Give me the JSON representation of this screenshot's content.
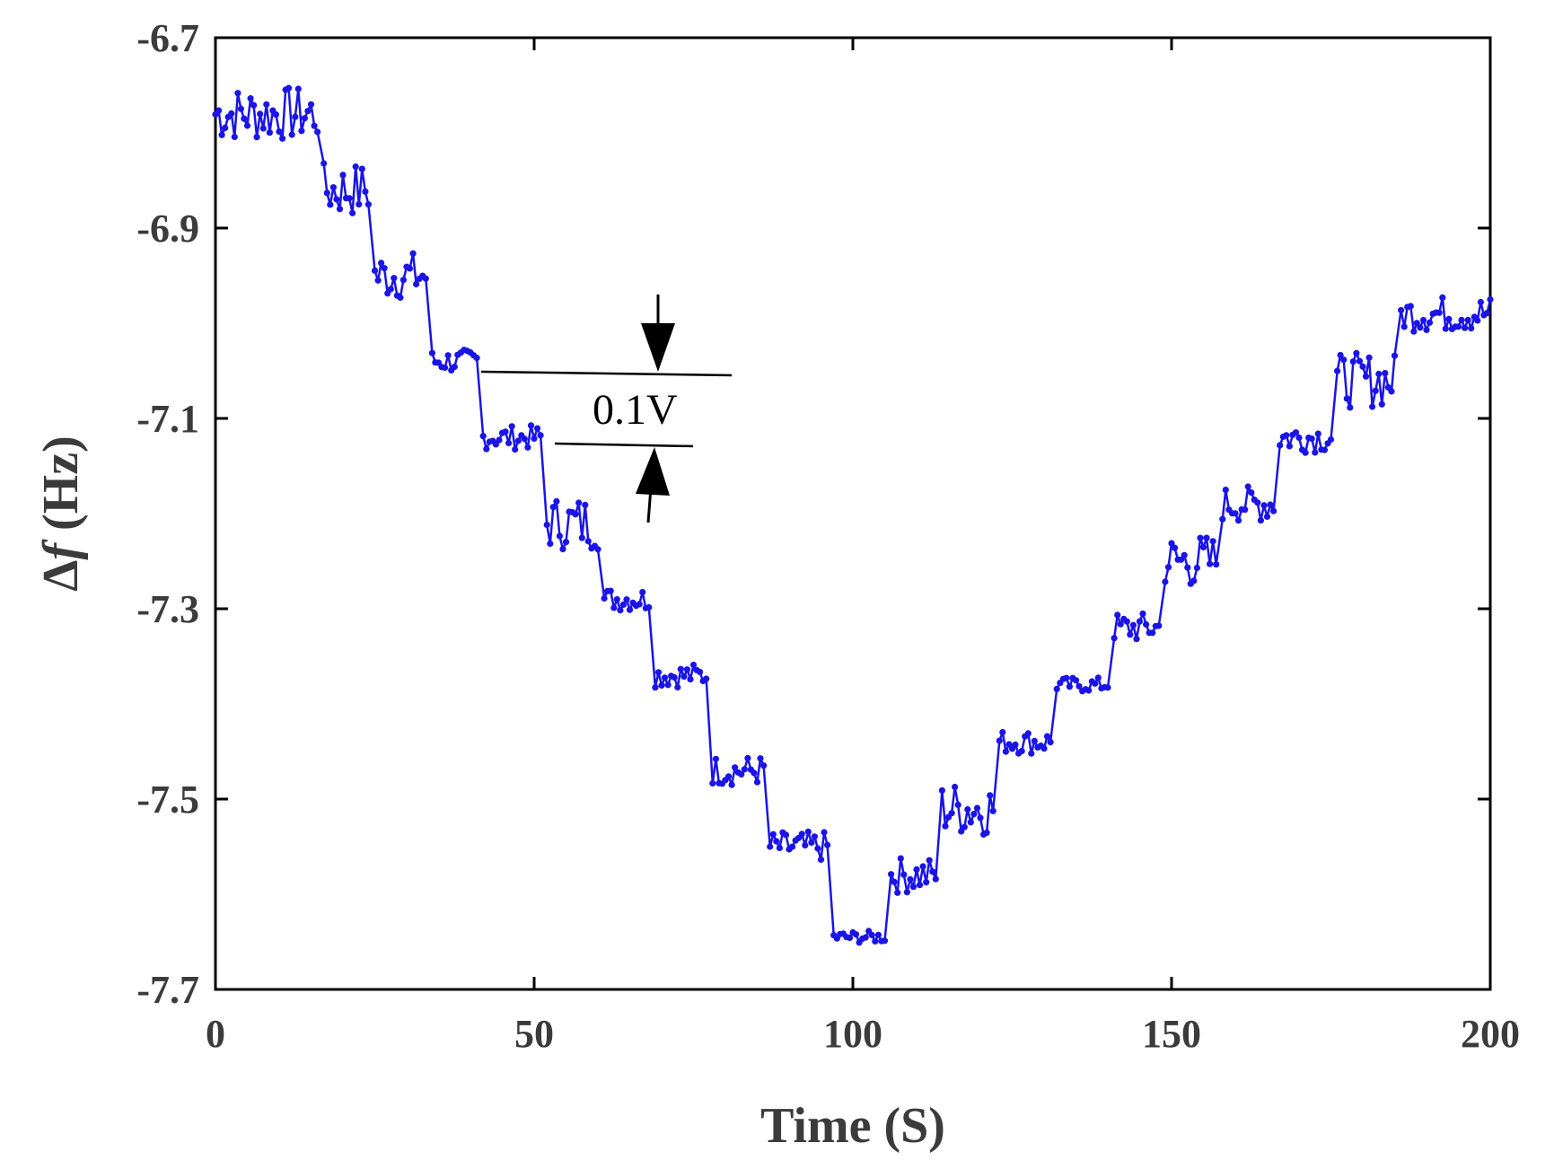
{
  "chart_data": {
    "type": "line",
    "title": "",
    "xlabel": "Time (S)",
    "ylabel_symbol": "Δ",
    "ylabel_var": "f",
    "ylabel_unit": " (Hz)",
    "xlim": [
      0,
      200
    ],
    "ylim": [
      -7.7,
      -6.7
    ],
    "xticks": [
      0,
      50,
      100,
      150,
      200
    ],
    "xtick_labels": [
      "0",
      "50",
      "100",
      "150",
      "200"
    ],
    "yticks": [
      -6.7,
      -6.9,
      -7.1,
      -7.3,
      -7.5,
      -7.7
    ],
    "ytick_labels": [
      "-6.7",
      "-6.9",
      "-7.1",
      "-7.3",
      "-7.5",
      "-7.7"
    ],
    "grid": false,
    "series": [
      {
        "name": "Δf",
        "color": "#1a14e6",
        "marker": "dot",
        "levels": [
          {
            "t_start": 0,
            "t_end": 16,
            "y": -6.78,
            "amp": 0.018
          },
          {
            "t_start": 17,
            "t_end": 24,
            "y": -6.86,
            "amp": 0.018
          },
          {
            "t_start": 25,
            "t_end": 33,
            "y": -6.95,
            "amp": 0.016
          },
          {
            "t_start": 34,
            "t_end": 41,
            "y": -7.04,
            "amp": 0.008
          },
          {
            "t_start": 42,
            "t_end": 51,
            "y": -7.12,
            "amp": 0.008
          },
          {
            "t_start": 52,
            "t_end": 60,
            "y": -7.21,
            "amp": 0.018
          },
          {
            "t_start": 61,
            "t_end": 68,
            "y": -7.29,
            "amp": 0.008
          },
          {
            "t_start": 69,
            "t_end": 77,
            "y": -7.37,
            "amp": 0.008
          },
          {
            "t_start": 78,
            "t_end": 86,
            "y": -7.47,
            "amp": 0.01
          },
          {
            "t_start": 87,
            "t_end": 96,
            "y": -7.55,
            "amp": 0.01
          },
          {
            "t_start": 97,
            "t_end": 105,
            "y": -7.645,
            "amp": 0.004
          },
          {
            "t_start": 106,
            "t_end": 113,
            "y": -7.58,
            "amp": 0.012
          },
          {
            "t_start": 114,
            "t_end": 122,
            "y": -7.51,
            "amp": 0.018
          },
          {
            "t_start": 123,
            "t_end": 131,
            "y": -7.44,
            "amp": 0.008
          },
          {
            "t_start": 132,
            "t_end": 140,
            "y": -7.38,
            "amp": 0.005
          },
          {
            "t_start": 141,
            "t_end": 148,
            "y": -7.32,
            "amp": 0.01
          },
          {
            "t_start": 149,
            "t_end": 157,
            "y": -7.25,
            "amp": 0.018
          },
          {
            "t_start": 158,
            "t_end": 166,
            "y": -7.19,
            "amp": 0.012
          },
          {
            "t_start": 167,
            "t_end": 175,
            "y": -7.12,
            "amp": 0.01
          },
          {
            "t_start": 176,
            "t_end": 185,
            "y": -7.06,
            "amp": 0.018
          },
          {
            "t_start": 186,
            "t_end": 200,
            "y": -6.99,
            "amp": 0.012
          }
        ]
      }
    ],
    "annotations": [
      {
        "text": "0.1V",
        "between_levels": [
          -7.045,
          -7.125
        ],
        "x": 70,
        "marker": "arrows"
      }
    ]
  }
}
